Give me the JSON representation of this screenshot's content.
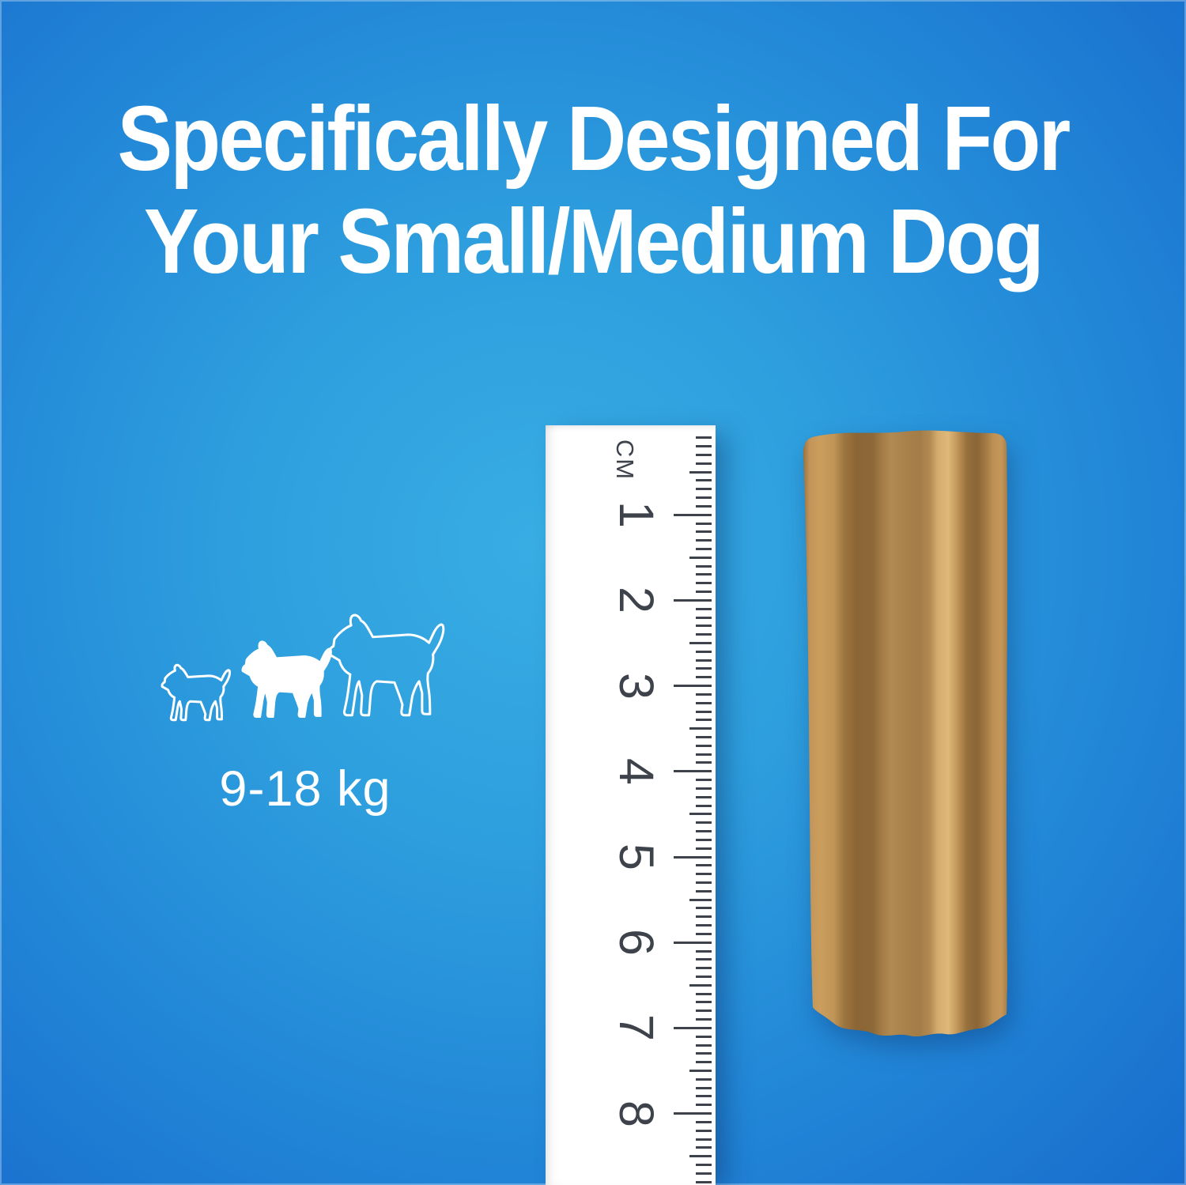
{
  "background": {
    "light": "#38ade4",
    "dark": "#125ec4"
  },
  "headline": {
    "line1": "Specifically Designed For",
    "line2": "Your Small/Medium Dog",
    "color": "#ffffff"
  },
  "size_guide": {
    "weight_range": "9-18 kg",
    "dogs": [
      {
        "size": "small",
        "style": "outline"
      },
      {
        "size": "medium",
        "style": "filled"
      },
      {
        "size": "large",
        "style": "outline"
      }
    ]
  },
  "ruler": {
    "unit_label": "CM",
    "numbers": [
      "1",
      "2",
      "3",
      "4",
      "5",
      "6",
      "7",
      "8"
    ],
    "minor_ticks_per_cm": 10,
    "tick_color": "#3d424b",
    "face_color": "#ffffff"
  },
  "product": {
    "name": "dog-dental-chew-stick",
    "ridge_color": "#cb9e5d",
    "groove_color": "#8b6535",
    "center_color": "#a8814b"
  }
}
